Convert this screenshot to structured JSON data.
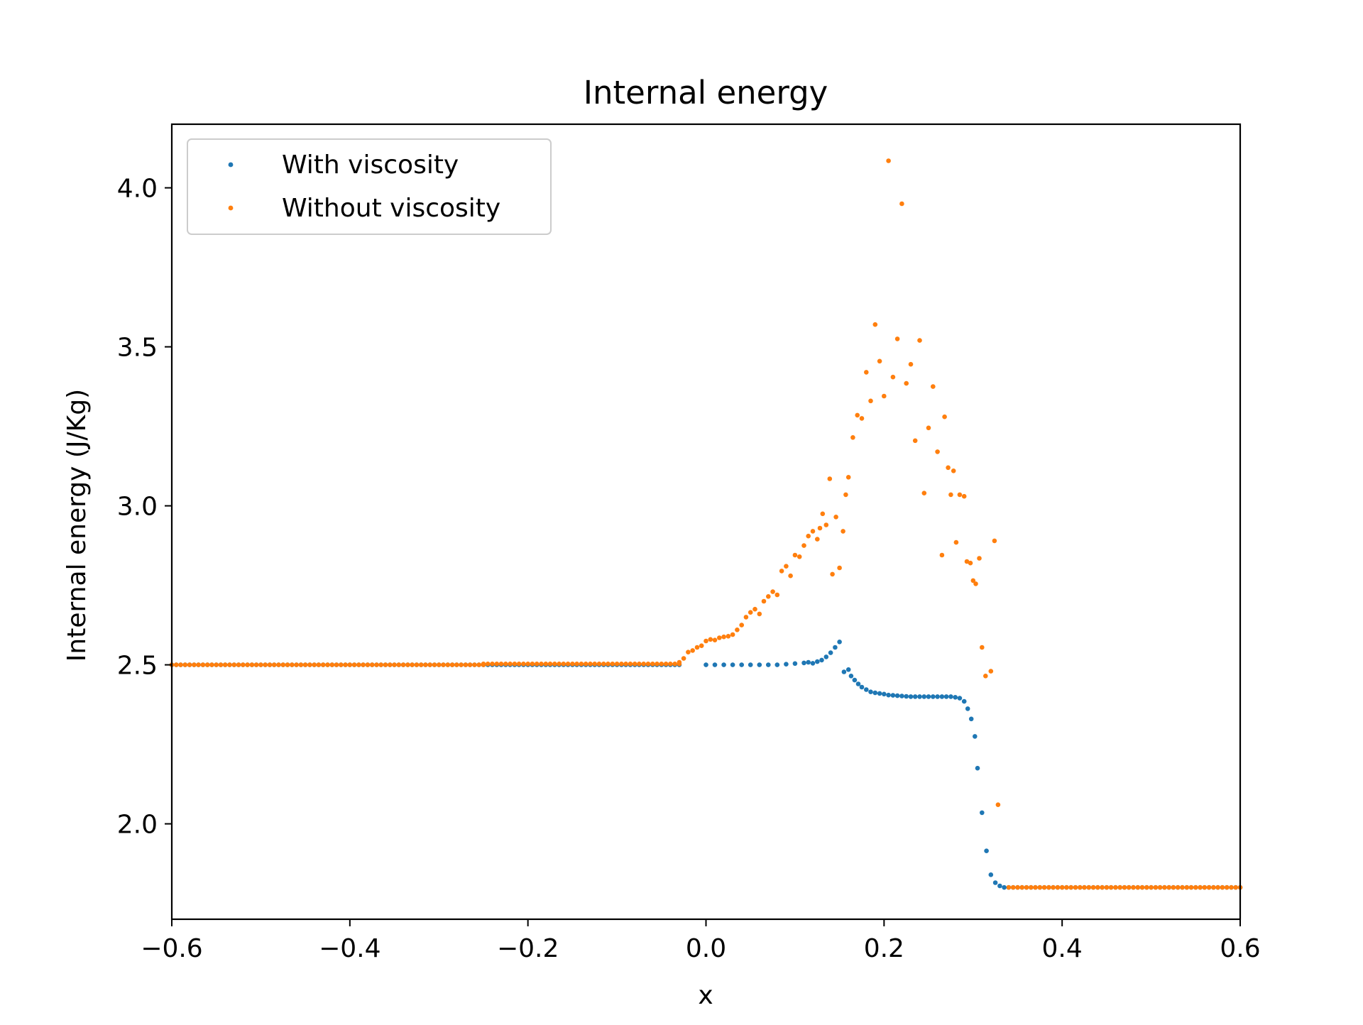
{
  "chart_data": {
    "type": "scatter",
    "title": "Internal energy",
    "xlabel": "x",
    "ylabel": "Internal energy (J/Kg)",
    "xlim": [
      -0.6,
      0.6
    ],
    "ylim": [
      1.7,
      4.2
    ],
    "xticks": [
      -0.6,
      -0.4,
      -0.2,
      0.0,
      0.2,
      0.4,
      0.6
    ],
    "xtick_labels": [
      "−0.6",
      "−0.4",
      "−0.2",
      "0.0",
      "0.2",
      "0.4",
      "0.6"
    ],
    "yticks": [
      2.0,
      2.5,
      3.0,
      3.5,
      4.0
    ],
    "ytick_labels": [
      "2.0",
      "2.5",
      "3.0",
      "3.5",
      "4.0"
    ],
    "grid": false,
    "legend_position": "upper-left",
    "series": [
      {
        "name": "With viscosity",
        "color": "#1f77b4",
        "points": [
          [
            0.0,
            2.5
          ],
          [
            0.01,
            2.5
          ],
          [
            0.02,
            2.5
          ],
          [
            0.03,
            2.5
          ],
          [
            0.04,
            2.5
          ],
          [
            0.05,
            2.5
          ],
          [
            0.06,
            2.5
          ],
          [
            0.07,
            2.5
          ],
          [
            0.08,
            2.5
          ],
          [
            0.09,
            2.502
          ],
          [
            0.1,
            2.504
          ],
          [
            0.11,
            2.506
          ],
          [
            0.115,
            2.508
          ],
          [
            0.12,
            2.505
          ],
          [
            0.125,
            2.51
          ],
          [
            0.13,
            2.515
          ],
          [
            0.135,
            2.525
          ],
          [
            0.14,
            2.538
          ],
          [
            0.145,
            2.555
          ],
          [
            0.15,
            2.572
          ],
          [
            0.155,
            2.478
          ],
          [
            0.16,
            2.485
          ],
          [
            0.163,
            2.465
          ],
          [
            0.167,
            2.452
          ],
          [
            0.171,
            2.44
          ],
          [
            0.175,
            2.43
          ],
          [
            0.18,
            2.422
          ],
          [
            0.185,
            2.415
          ],
          [
            0.19,
            2.412
          ],
          [
            0.195,
            2.41
          ],
          [
            0.2,
            2.408
          ],
          [
            0.205,
            2.405
          ],
          [
            0.21,
            2.404
          ],
          [
            0.215,
            2.403
          ],
          [
            0.22,
            2.402
          ],
          [
            0.225,
            2.401
          ],
          [
            0.23,
            2.4
          ],
          [
            0.235,
            2.4
          ],
          [
            0.24,
            2.4
          ],
          [
            0.245,
            2.4
          ],
          [
            0.25,
            2.4
          ],
          [
            0.255,
            2.4
          ],
          [
            0.26,
            2.4
          ],
          [
            0.265,
            2.4
          ],
          [
            0.27,
            2.4
          ],
          [
            0.275,
            2.4
          ],
          [
            0.28,
            2.398
          ],
          [
            0.285,
            2.395
          ],
          [
            0.29,
            2.385
          ],
          [
            0.294,
            2.362
          ],
          [
            0.298,
            2.33
          ],
          [
            0.302,
            2.275
          ],
          [
            0.305,
            2.175
          ],
          [
            0.31,
            2.035
          ],
          [
            0.315,
            1.915
          ],
          [
            0.32,
            1.84
          ],
          [
            0.325,
            1.815
          ],
          [
            0.33,
            1.805
          ],
          [
            0.335,
            1.8
          ]
        ]
      },
      {
        "name": "Without viscosity",
        "color": "#ff7f0e",
        "points": [
          [
            -0.03,
            2.508
          ],
          [
            -0.025,
            2.52
          ],
          [
            -0.02,
            2.54
          ],
          [
            -0.015,
            2.545
          ],
          [
            -0.01,
            2.555
          ],
          [
            -0.005,
            2.56
          ],
          [
            0.0,
            2.575
          ],
          [
            0.005,
            2.58
          ],
          [
            0.01,
            2.578
          ],
          [
            0.015,
            2.585
          ],
          [
            0.02,
            2.588
          ],
          [
            0.025,
            2.59
          ],
          [
            0.03,
            2.595
          ],
          [
            0.035,
            2.61
          ],
          [
            0.04,
            2.625
          ],
          [
            0.045,
            2.65
          ],
          [
            0.05,
            2.665
          ],
          [
            0.055,
            2.675
          ],
          [
            0.06,
            2.66
          ],
          [
            0.065,
            2.7
          ],
          [
            0.07,
            2.715
          ],
          [
            0.075,
            2.73
          ],
          [
            0.08,
            2.72
          ],
          [
            0.085,
            2.795
          ],
          [
            0.09,
            2.81
          ],
          [
            0.095,
            2.78
          ],
          [
            0.1,
            2.845
          ],
          [
            0.105,
            2.84
          ],
          [
            0.11,
            2.875
          ],
          [
            0.115,
            2.905
          ],
          [
            0.12,
            2.92
          ],
          [
            0.125,
            2.895
          ],
          [
            0.128,
            2.93
          ],
          [
            0.131,
            2.975
          ],
          [
            0.135,
            2.94
          ],
          [
            0.139,
            3.085
          ],
          [
            0.142,
            2.785
          ],
          [
            0.146,
            2.965
          ],
          [
            0.15,
            2.805
          ],
          [
            0.154,
            2.92
          ],
          [
            0.157,
            3.035
          ],
          [
            0.16,
            3.09
          ],
          [
            0.165,
            3.215
          ],
          [
            0.17,
            3.285
          ],
          [
            0.175,
            3.275
          ],
          [
            0.18,
            3.42
          ],
          [
            0.185,
            3.33
          ],
          [
            0.19,
            3.57
          ],
          [
            0.195,
            3.455
          ],
          [
            0.2,
            3.345
          ],
          [
            0.205,
            4.085
          ],
          [
            0.21,
            3.405
          ],
          [
            0.215,
            3.525
          ],
          [
            0.22,
            3.95
          ],
          [
            0.225,
            3.385
          ],
          [
            0.23,
            3.445
          ],
          [
            0.235,
            3.205
          ],
          [
            0.24,
            3.52
          ],
          [
            0.245,
            3.04
          ],
          [
            0.25,
            3.245
          ],
          [
            0.255,
            3.375
          ],
          [
            0.26,
            3.17
          ],
          [
            0.265,
            2.845
          ],
          [
            0.268,
            3.28
          ],
          [
            0.272,
            3.12
          ],
          [
            0.275,
            3.035
          ],
          [
            0.278,
            3.11
          ],
          [
            0.281,
            2.885
          ],
          [
            0.285,
            3.035
          ],
          [
            0.29,
            3.03
          ],
          [
            0.293,
            2.825
          ],
          [
            0.297,
            2.82
          ],
          [
            0.3,
            2.765
          ],
          [
            0.303,
            2.755
          ],
          [
            0.307,
            2.835
          ],
          [
            0.31,
            2.555
          ],
          [
            0.314,
            2.465
          ],
          [
            0.32,
            2.48
          ],
          [
            0.324,
            2.89
          ],
          [
            0.328,
            2.06
          ]
        ]
      }
    ],
    "flat_segments": [
      {
        "series": 0,
        "x_start": -0.6,
        "x_end": -0.03,
        "y": 2.5,
        "note_hidden_under_series_1": true
      },
      {
        "series": 1,
        "x_start": -0.6,
        "x_end": -0.25,
        "y": 2.5
      },
      {
        "series": 1,
        "x_start": -0.25,
        "x_end": -0.03,
        "y": 2.503
      },
      {
        "series": 0,
        "x_start": 0.34,
        "x_end": 0.6,
        "y": 1.8
      },
      {
        "series": 1,
        "x_start": 0.34,
        "x_end": 0.6,
        "y": 1.8
      }
    ]
  }
}
